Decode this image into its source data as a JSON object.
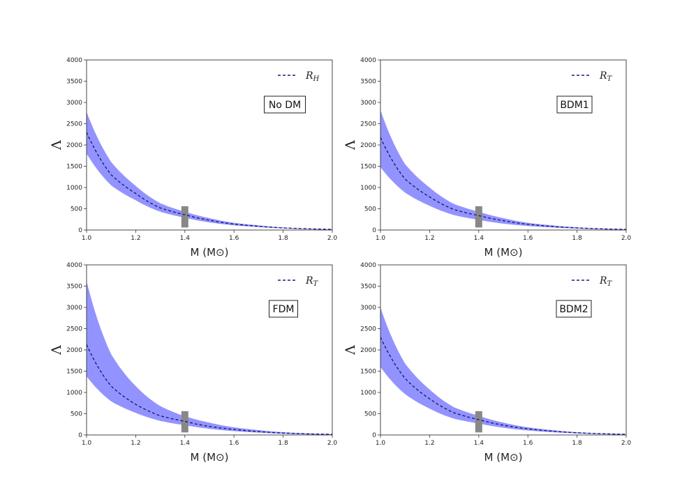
{
  "chart_data": [
    {
      "type": "line",
      "panel_label": "No DM",
      "legend": {
        "symbol": "R",
        "subscript": "H",
        "placement": "top-right"
      },
      "xlabel": "M (M⊙)",
      "ylabel": "Λ",
      "xlim": [
        1.0,
        2.0
      ],
      "ylim": [
        0,
        4000
      ],
      "xticks": [
        "1.0",
        "1.2",
        "1.4",
        "1.6",
        "1.8",
        "2.0"
      ],
      "yticks": [
        "0",
        "500",
        "1000",
        "1500",
        "2000",
        "2500",
        "3000",
        "3500",
        "4000"
      ],
      "x": [
        1.0,
        1.1,
        1.2,
        1.3,
        1.4,
        1.5,
        1.6,
        1.7,
        1.8,
        1.9,
        2.0
      ],
      "series": [
        {
          "values": [
            2300,
            1300,
            860,
            520,
            360,
            230,
            140,
            90,
            50,
            30,
            15
          ],
          "style": "dashed",
          "color": "#1a1a7a"
        }
      ],
      "band": {
        "lower": [
          1800,
          1050,
          700,
          430,
          290,
          180,
          110,
          70,
          40,
          20,
          10
        ],
        "upper": [
          2780,
          1600,
          1040,
          630,
          430,
          280,
          170,
          110,
          60,
          35,
          20
        ],
        "color": "#8080ff"
      },
      "marker": {
        "x": 1.4,
        "ylow": 60,
        "yhigh": 560,
        "color": "#888888"
      }
    },
    {
      "type": "line",
      "panel_label": "BDM1",
      "legend": {
        "symbol": "R",
        "subscript": "T",
        "placement": "top-right"
      },
      "xlabel": "M (M⊙)",
      "ylabel": "Λ",
      "xlim": [
        1.0,
        2.0
      ],
      "ylim": [
        0,
        4000
      ],
      "xticks": [
        "1.0",
        "1.2",
        "1.4",
        "1.6",
        "1.8",
        "2.0"
      ],
      "yticks": [
        "0",
        "500",
        "1000",
        "1500",
        "2000",
        "2500",
        "3000",
        "3500",
        "4000"
      ],
      "x": [
        1.0,
        1.1,
        1.2,
        1.3,
        1.4,
        1.5,
        1.6,
        1.7,
        1.8,
        1.9,
        2.0
      ],
      "series": [
        {
          "values": [
            2180,
            1200,
            780,
            480,
            340,
            220,
            135,
            85,
            50,
            28,
            15
          ],
          "style": "dashed",
          "color": "#1a1a7a"
        }
      ],
      "band": {
        "lower": [
          1480,
          880,
          570,
          350,
          240,
          150,
          95,
          60,
          35,
          18,
          8
        ],
        "upper": [
          2820,
          1550,
          1000,
          610,
          430,
          280,
          170,
          110,
          62,
          36,
          20
        ],
        "color": "#8080ff"
      },
      "marker": {
        "x": 1.4,
        "ylow": 60,
        "yhigh": 560,
        "color": "#888888"
      }
    },
    {
      "type": "line",
      "panel_label": "FDM",
      "legend": {
        "symbol": "R",
        "subscript": "T",
        "placement": "top-right"
      },
      "xlabel": "M (M⊙)",
      "ylabel": "Λ",
      "xlim": [
        1.0,
        2.0
      ],
      "ylim": [
        0,
        4000
      ],
      "xticks": [
        "1.0",
        "1.2",
        "1.4",
        "1.6",
        "1.8",
        "2.0"
      ],
      "yticks": [
        "0",
        "500",
        "1000",
        "1500",
        "2000",
        "2500",
        "3000",
        "3500",
        "4000"
      ],
      "x": [
        1.0,
        1.1,
        1.2,
        1.3,
        1.4,
        1.5,
        1.6,
        1.7,
        1.8,
        1.9,
        2.0
      ],
      "series": [
        {
          "values": [
            2130,
            1150,
            720,
            450,
            320,
            200,
            130,
            80,
            45,
            25,
            15
          ],
          "style": "dashed",
          "color": "#1a1a7a"
        }
      ],
      "band": {
        "lower": [
          1380,
          790,
          520,
          330,
          230,
          145,
          90,
          55,
          30,
          16,
          8
        ],
        "upper": [
          3620,
          1900,
          1150,
          680,
          440,
          290,
          180,
          115,
          65,
          38,
          22
        ],
        "color": "#8080ff"
      },
      "marker": {
        "x": 1.4,
        "ylow": 60,
        "yhigh": 560,
        "color": "#888888"
      }
    },
    {
      "type": "line",
      "panel_label": "BDM2",
      "legend": {
        "symbol": "R",
        "subscript": "T",
        "placement": "top-right"
      },
      "xlabel": "M (M⊙)",
      "ylabel": "Λ",
      "xlim": [
        1.0,
        2.0
      ],
      "ylim": [
        0,
        4000
      ],
      "xticks": [
        "1.0",
        "1.2",
        "1.4",
        "1.6",
        "1.8",
        "2.0"
      ],
      "yticks": [
        "0",
        "500",
        "1000",
        "1500",
        "2000",
        "2500",
        "3000",
        "3500",
        "4000"
      ],
      "x": [
        1.0,
        1.1,
        1.2,
        1.3,
        1.4,
        1.5,
        1.6,
        1.7,
        1.8,
        1.9,
        2.0
      ],
      "series": [
        {
          "values": [
            2300,
            1330,
            850,
            520,
            360,
            230,
            145,
            90,
            52,
            30,
            15
          ],
          "style": "dashed",
          "color": "#1a1a7a"
        }
      ],
      "band": {
        "lower": [
          1600,
          960,
          620,
          380,
          270,
          170,
          105,
          65,
          38,
          20,
          10
        ],
        "upper": [
          3000,
          1680,
          1070,
          650,
          450,
          290,
          180,
          115,
          65,
          38,
          22
        ],
        "color": "#8080ff"
      },
      "marker": {
        "x": 1.4,
        "ylow": 60,
        "yhigh": 560,
        "color": "#888888"
      }
    }
  ]
}
